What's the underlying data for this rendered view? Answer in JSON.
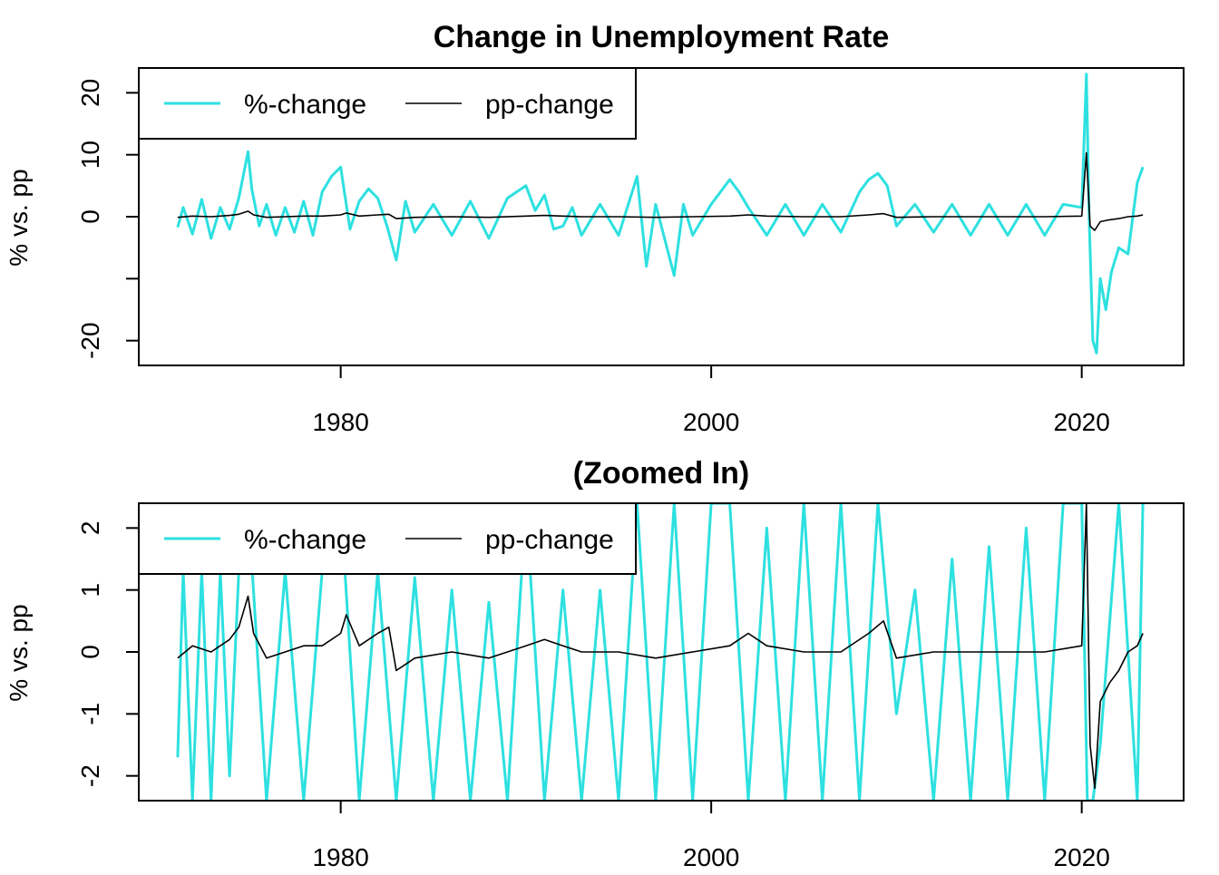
{
  "chart_data": [
    {
      "type": "line",
      "title": "Change in Unemployment Rate",
      "xlabel": "",
      "ylabel": "% vs. pp",
      "xlim": [
        1969.1,
        2025.5
      ],
      "ylim": [
        -24,
        24
      ],
      "x_ticks": [
        1980,
        2000,
        2020
      ],
      "y_ticks": [
        -20,
        -10,
        0,
        10,
        20
      ],
      "y_tick_labels": [
        "-20",
        "",
        "0",
        "10",
        "20"
      ],
      "legend": {
        "position": "top-left",
        "entries": [
          "%-change",
          "pp-change"
        ]
      },
      "grid": false,
      "series": [
        {
          "name": "%-change",
          "color": "#2ee0e0",
          "x": [
            1971.2,
            1971.5,
            1972.0,
            1972.5,
            1973.0,
            1973.5,
            1974.0,
            1974.5,
            1975.0,
            1975.2,
            1975.6,
            1976.0,
            1976.5,
            1977.0,
            1977.5,
            1978.0,
            1978.5,
            1979.0,
            1979.5,
            1980.0,
            1980.25,
            1980.5,
            1981.0,
            1981.5,
            1982.0,
            1982.5,
            1983.0,
            1983.5,
            1984.0,
            1985.0,
            1986.0,
            1987.0,
            1988.0,
            1989.0,
            1990.0,
            1990.5,
            1991.0,
            1991.5,
            1992.0,
            1992.5,
            1993.0,
            1994.0,
            1995.0,
            1996.0,
            1996.5,
            1997.0,
            1998.0,
            1998.5,
            1999.0,
            2000.0,
            2001.0,
            2001.5,
            2002.0,
            2003.0,
            2004.0,
            2005.0,
            2006.0,
            2007.0,
            2008.0,
            2008.5,
            2009.0,
            2009.5,
            2010.0,
            2011.0,
            2012.0,
            2013.0,
            2014.0,
            2015.0,
            2016.0,
            2017.0,
            2018.0,
            2019.0,
            2020.0,
            2020.25,
            2020.4,
            2020.6,
            2020.8,
            2021.0,
            2021.3,
            2021.6,
            2022.0,
            2022.5,
            2023.0,
            2023.3
          ],
          "values": [
            -1.7,
            1.5,
            -2.8,
            2.8,
            -3.5,
            1.5,
            -2.0,
            3.0,
            10.5,
            4.5,
            -1.5,
            2.0,
            -3.0,
            1.5,
            -2.5,
            2.5,
            -3.0,
            4.0,
            6.5,
            8.0,
            3.0,
            -2.0,
            2.5,
            4.5,
            3.0,
            -1.5,
            -7.0,
            2.5,
            -2.5,
            2.0,
            -3.0,
            2.5,
            -3.5,
            3.0,
            5.0,
            1.0,
            3.5,
            -2.0,
            -1.5,
            1.5,
            -3.0,
            2.0,
            -3.0,
            6.5,
            -8.0,
            2.0,
            -9.5,
            2.0,
            -3.0,
            2.0,
            6.0,
            4.0,
            1.5,
            -3.0,
            2.0,
            -3.0,
            2.0,
            -2.5,
            4.0,
            6.0,
            7.0,
            5.0,
            -1.5,
            2.0,
            -2.5,
            2.0,
            -3.0,
            2.0,
            -3.0,
            2.0,
            -3.0,
            2.0,
            1.5,
            23.0,
            0.0,
            -20.0,
            -22.0,
            -10.0,
            -15.0,
            -9.0,
            -5.0,
            -6.0,
            5.5,
            8.0
          ]
        },
        {
          "name": "pp-change",
          "color": "#000000",
          "x": [
            1971.2,
            1972.0,
            1973.0,
            1974.0,
            1974.5,
            1975.0,
            1975.3,
            1976.0,
            1977.0,
            1978.0,
            1979.0,
            1980.0,
            1980.3,
            1981.0,
            1982.0,
            1982.6,
            1983.0,
            1983.5,
            1984.0,
            1986.0,
            1988.0,
            1990.0,
            1991.0,
            1992.0,
            1993.0,
            1995.0,
            1997.0,
            1999.0,
            2001.0,
            2002.0,
            2003.0,
            2005.0,
            2007.0,
            2008.5,
            2009.3,
            2010.0,
            2012.0,
            2014.0,
            2016.0,
            2018.0,
            2020.0,
            2020.25,
            2020.45,
            2020.7,
            2021.0,
            2021.5,
            2022.0,
            2022.5,
            2023.0,
            2023.3
          ],
          "values": [
            -0.1,
            0.1,
            0.0,
            0.2,
            0.4,
            0.9,
            0.3,
            -0.1,
            0.0,
            0.1,
            0.1,
            0.3,
            0.6,
            0.1,
            0.3,
            0.4,
            -0.3,
            -0.2,
            -0.1,
            0.0,
            -0.1,
            0.1,
            0.2,
            0.1,
            0.0,
            0.0,
            -0.1,
            0.0,
            0.1,
            0.3,
            0.1,
            0.0,
            0.0,
            0.3,
            0.5,
            -0.1,
            0.0,
            0.0,
            0.0,
            0.0,
            0.1,
            10.3,
            -1.5,
            -2.2,
            -0.8,
            -0.5,
            -0.3,
            0.0,
            0.1,
            0.3
          ]
        }
      ]
    },
    {
      "type": "line",
      "title": "(Zoomed In)",
      "xlabel": "",
      "ylabel": "% vs. pp",
      "xlim": [
        1969.1,
        2025.5
      ],
      "ylim": [
        -2.4,
        2.4
      ],
      "x_ticks": [
        1980,
        2000,
        2020
      ],
      "y_ticks": [
        -2,
        -1,
        0,
        1,
        2
      ],
      "y_tick_labels": [
        "-2",
        "-1",
        "0",
        "1",
        "2"
      ],
      "legend": {
        "position": "top-left",
        "entries": [
          "%-change",
          "pp-change"
        ]
      },
      "grid": false,
      "series": [
        {
          "name": "%-change",
          "color": "#2ee0e0",
          "x": [
            1971.2,
            1971.5,
            1972.0,
            1972.5,
            1973.0,
            1973.5,
            1974.0,
            1974.5,
            1975.0,
            1976.0,
            1977.0,
            1978.0,
            1979.0,
            1980.0,
            1981.0,
            1982.0,
            1983.0,
            1984.0,
            1985.0,
            1986.0,
            1987.0,
            1988.0,
            1989.0,
            1990.0,
            1991.0,
            1992.0,
            1993.0,
            1994.0,
            1995.0,
            1996.0,
            1997.0,
            1998.0,
            1999.0,
            2000.0,
            2001.0,
            2002.0,
            2003.0,
            2004.0,
            2005.0,
            2006.0,
            2007.0,
            2008.0,
            2009.0,
            2010.0,
            2011.0,
            2012.0,
            2013.0,
            2014.0,
            2015.0,
            2016.0,
            2017.0,
            2018.0,
            2019.0,
            2020.0,
            2020.3,
            2020.6,
            2021.0,
            2022.0,
            2023.0,
            2023.3
          ],
          "values": [
            -1.7,
            1.3,
            -2.4,
            1.3,
            -2.4,
            1.3,
            -2.0,
            1.3,
            2.4,
            -2.4,
            1.3,
            -2.4,
            1.3,
            2.4,
            -2.4,
            1.3,
            -2.4,
            1.2,
            -2.4,
            1.0,
            -2.4,
            0.8,
            -2.4,
            2.4,
            -2.4,
            1.0,
            -2.4,
            1.0,
            -2.4,
            2.4,
            -2.4,
            2.4,
            -2.4,
            2.4,
            2.4,
            -2.4,
            2.0,
            -2.4,
            2.4,
            -2.4,
            2.4,
            -2.4,
            2.4,
            -1.0,
            1.0,
            -2.4,
            1.5,
            -2.4,
            1.7,
            -2.4,
            2.0,
            -2.4,
            2.4,
            2.4,
            -2.4,
            -2.4,
            -1.5,
            2.4,
            -2.4,
            2.4
          ]
        },
        {
          "name": "pp-change",
          "color": "#000000",
          "x": [
            1971.2,
            1972.0,
            1973.0,
            1974.0,
            1974.5,
            1975.0,
            1975.3,
            1976.0,
            1977.0,
            1978.0,
            1979.0,
            1980.0,
            1980.3,
            1981.0,
            1982.0,
            1982.6,
            1983.0,
            1983.5,
            1984.0,
            1986.0,
            1988.0,
            1990.0,
            1991.0,
            1992.0,
            1993.0,
            1995.0,
            1997.0,
            1999.0,
            2001.0,
            2002.0,
            2003.0,
            2005.0,
            2007.0,
            2008.5,
            2009.3,
            2010.0,
            2012.0,
            2014.0,
            2016.0,
            2018.0,
            2020.0,
            2020.25,
            2020.45,
            2020.7,
            2021.0,
            2021.5,
            2022.0,
            2022.5,
            2023.0,
            2023.3
          ],
          "values": [
            -0.1,
            0.1,
            0.0,
            0.2,
            0.4,
            0.9,
            0.3,
            -0.1,
            0.0,
            0.1,
            0.1,
            0.3,
            0.6,
            0.1,
            0.3,
            0.4,
            -0.3,
            -0.2,
            -0.1,
            0.0,
            -0.1,
            0.1,
            0.2,
            0.1,
            0.0,
            0.0,
            -0.1,
            0.0,
            0.1,
            0.3,
            0.1,
            0.0,
            0.0,
            0.3,
            0.5,
            -0.1,
            0.0,
            0.0,
            0.0,
            0.0,
            0.1,
            2.4,
            -1.5,
            -2.2,
            -0.8,
            -0.5,
            -0.3,
            0.0,
            0.1,
            0.3
          ]
        }
      ]
    }
  ]
}
